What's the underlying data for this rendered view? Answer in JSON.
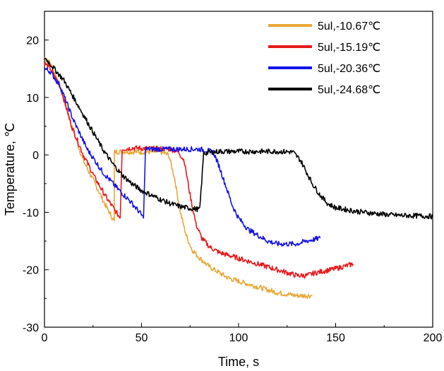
{
  "chart_data": {
    "type": "line",
    "title": "",
    "xlabel": "Time, s",
    "ylabel": "Temperature, ℃",
    "xlim": [
      0,
      200
    ],
    "ylim": [
      -30,
      25
    ],
    "xticks": [
      0,
      50,
      100,
      150,
      200
    ],
    "yticks": [
      -30,
      -20,
      -10,
      0,
      10,
      20
    ],
    "grid": false,
    "legend_position": "top-right",
    "series": [
      {
        "name": "5ul,-10.67℃",
        "color": "#E8A838",
        "points": [
          [
            0,
            17
          ],
          [
            3,
            16
          ],
          [
            8,
            12
          ],
          [
            14,
            5
          ],
          [
            20,
            -1
          ],
          [
            26,
            -5
          ],
          [
            31,
            -8.5
          ],
          [
            35,
            -11
          ],
          [
            36,
            -11.5
          ],
          [
            36,
            0.5
          ],
          [
            40,
            0.6
          ],
          [
            50,
            0.5
          ],
          [
            60,
            0.5
          ],
          [
            64,
            0
          ],
          [
            67,
            -4
          ],
          [
            70,
            -10
          ],
          [
            73,
            -14
          ],
          [
            76,
            -16.5
          ],
          [
            80,
            -18
          ],
          [
            85,
            -19.5
          ],
          [
            90,
            -20.5
          ],
          [
            95,
            -21.5
          ],
          [
            100,
            -22
          ],
          [
            110,
            -23
          ],
          [
            120,
            -24
          ],
          [
            130,
            -24.5
          ],
          [
            138,
            -24.5
          ]
        ]
      },
      {
        "name": "5ul,-15.19℃",
        "color": "#E8191C",
        "points": [
          [
            0,
            16
          ],
          [
            3,
            15
          ],
          [
            8,
            12
          ],
          [
            14,
            5
          ],
          [
            20,
            0
          ],
          [
            26,
            -4
          ],
          [
            32,
            -7.5
          ],
          [
            38,
            -10.5
          ],
          [
            39,
            -11
          ],
          [
            40,
            1
          ],
          [
            45,
            1.2
          ],
          [
            55,
            1.1
          ],
          [
            65,
            1
          ],
          [
            69,
            0.5
          ],
          [
            72,
            -1
          ],
          [
            75,
            -7
          ],
          [
            78,
            -12
          ],
          [
            81,
            -14.5
          ],
          [
            85,
            -16
          ],
          [
            90,
            -17
          ],
          [
            100,
            -18
          ],
          [
            110,
            -19
          ],
          [
            120,
            -20
          ],
          [
            130,
            -21
          ],
          [
            135,
            -21
          ],
          [
            140,
            -20.5
          ],
          [
            150,
            -19.8
          ],
          [
            159,
            -19
          ]
        ]
      },
      {
        "name": "5ul,-20.36℃",
        "color": "#1515E8",
        "points": [
          [
            0,
            15
          ],
          [
            3,
            14.5
          ],
          [
            8,
            12
          ],
          [
            15,
            6
          ],
          [
            22,
            1
          ],
          [
            30,
            -3
          ],
          [
            38,
            -6
          ],
          [
            44,
            -8
          ],
          [
            49,
            -10
          ],
          [
            51,
            -11
          ],
          [
            52,
            1
          ],
          [
            60,
            1
          ],
          [
            70,
            1
          ],
          [
            80,
            1
          ],
          [
            87,
            0.5
          ],
          [
            90,
            -2
          ],
          [
            93,
            -5
          ],
          [
            97,
            -9
          ],
          [
            100,
            -11
          ],
          [
            105,
            -13
          ],
          [
            110,
            -14
          ],
          [
            115,
            -15
          ],
          [
            120,
            -15.5
          ],
          [
            130,
            -15.5
          ],
          [
            135,
            -15
          ],
          [
            142,
            -14.5
          ]
        ]
      },
      {
        "name": "5ul,-24.68℃",
        "color": "#000000",
        "points": [
          [
            0,
            17
          ],
          [
            5,
            15
          ],
          [
            10,
            13
          ],
          [
            15,
            10
          ],
          [
            20,
            7
          ],
          [
            25,
            4
          ],
          [
            30,
            1
          ],
          [
            35,
            -1.5
          ],
          [
            40,
            -3.5
          ],
          [
            45,
            -5
          ],
          [
            50,
            -6.2
          ],
          [
            55,
            -7
          ],
          [
            60,
            -7.8
          ],
          [
            65,
            -8.5
          ],
          [
            70,
            -9
          ],
          [
            75,
            -9.3
          ],
          [
            80,
            -9.5
          ],
          [
            82,
            0.3
          ],
          [
            90,
            0.6
          ],
          [
            100,
            0.6
          ],
          [
            110,
            0.6
          ],
          [
            120,
            0.6
          ],
          [
            128,
            0.5
          ],
          [
            132,
            -1
          ],
          [
            135,
            -3
          ],
          [
            138,
            -5
          ],
          [
            142,
            -7
          ],
          [
            146,
            -8.5
          ],
          [
            150,
            -9.2
          ],
          [
            160,
            -9.8
          ],
          [
            170,
            -10.2
          ],
          [
            180,
            -10.5
          ],
          [
            190,
            -10.6
          ],
          [
            200,
            -10.7
          ]
        ]
      }
    ]
  }
}
